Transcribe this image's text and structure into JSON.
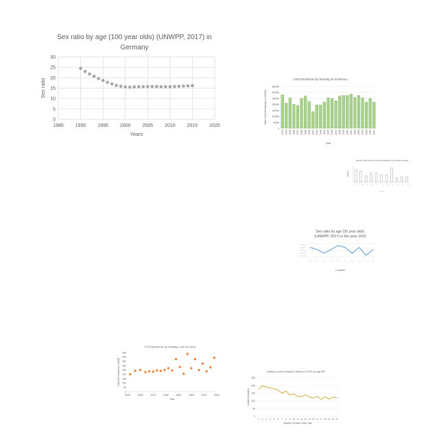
{
  "chart_data": [
    {
      "type": "scatter",
      "title_lines": [
        "Sex ratio by age (100 year olds) (UNWPP, 2017) in",
        "Germany"
      ],
      "xlabel": "Years",
      "ylabel": "Sex ratio",
      "xlim": [
        1985,
        2020
      ],
      "ylim": [
        0,
        30
      ],
      "xticks": [
        1985,
        1990,
        1995,
        2000,
        2005,
        2010,
        2015,
        2020
      ],
      "yticks": [
        0,
        5,
        10,
        15,
        20,
        25,
        30
      ],
      "grid": true,
      "marker_color": "#a5a5a5",
      "x": [
        1990,
        1991,
        1992,
        1993,
        1994,
        1995,
        1996,
        1997,
        1998,
        1999,
        2000,
        2001,
        2002,
        2003,
        2004,
        2005,
        2006,
        2007,
        2008,
        2009,
        2010,
        2011,
        2012,
        2013,
        2014,
        2015
      ],
      "y": [
        24.5,
        23.0,
        21.8,
        20.7,
        19.6,
        18.7,
        17.8,
        17.0,
        16.3,
        15.9,
        15.6,
        15.5,
        15.6,
        15.7,
        15.7,
        15.8,
        15.8,
        15.8,
        15.7,
        15.7,
        15.7,
        15.8,
        15.9,
        16.0,
        16.1,
        16.2
      ]
    },
    {
      "type": "bar",
      "title": "CO2 Emissions by burning oil in Mexico",
      "xlabel": "Year",
      "ylabel": "Total CO2 Emissions (*10000)",
      "ylim": [
        0,
        35000
      ],
      "yticks": [
        "0",
        "5000",
        "10000",
        "15000",
        "20000",
        "25000",
        "30000",
        "35000"
      ],
      "bar_color": "#a9d18e",
      "bar_edge": "#70ad47",
      "categories": [
        "1933",
        "1934",
        "1935",
        "1936",
        "1937",
        "1938",
        "1939",
        "1940",
        "1941",
        "1942",
        "1943",
        "1944",
        "1945",
        "1946",
        "1947",
        "1948",
        "1949",
        "1950",
        "1951",
        "1952",
        "1953",
        "1954",
        "1955",
        "1956",
        "1957"
      ],
      "values": [
        28000,
        21000,
        25500,
        20000,
        19000,
        25000,
        27000,
        22500,
        14000,
        19500,
        19500,
        22000,
        25500,
        25000,
        23000,
        27000,
        27500,
        27500,
        28500,
        26000,
        27500,
        25500,
        22000,
        25000,
        22000
      ]
    },
    {
      "type": "bar",
      "title": "Number (MT CO2) of crude oil production in several countries",
      "ylabel": "Number",
      "bar_color": "#ffffff",
      "bar_edge": "#8c8c8c",
      "values": [
        60,
        55,
        30,
        45,
        45,
        35,
        35,
        70,
        20,
        25,
        25
      ]
    },
    {
      "type": "line",
      "title_lines": [
        "Sex ratio by age (30 year olds)",
        "(UNWPP, 2017) in the year 2010"
      ],
      "xlabel": "Location",
      "line_color": "#5b9bd5",
      "values": [
        101,
        100.5,
        99.5,
        100.5,
        101.5,
        101,
        99.5,
        101,
        99,
        100.5
      ]
    },
    {
      "type": "scatter",
      "title": "CO2 Emissions by burning coal in Latvia",
      "xlabel": "Year",
      "ylabel": "Total CO2 Emissions in 1000t",
      "xlim": [
        1950,
        2020
      ],
      "ylim": [
        0,
        450
      ],
      "xticks": [
        1950,
        1960,
        1970,
        1980,
        1990,
        2000,
        2010,
        2020
      ],
      "yticks": [
        0,
        50,
        100,
        150,
        200,
        250,
        300,
        350,
        400,
        450
      ],
      "marker_color": "#ed7d31",
      "x": [
        1952,
        1956,
        1960,
        1964,
        1967,
        1970,
        1973,
        1976,
        1979,
        1982,
        1985,
        1988,
        1991,
        1994,
        1997,
        2000,
        2003,
        2006,
        2009,
        2012,
        2015,
        2018
      ],
      "y": [
        200,
        240,
        250,
        225,
        235,
        230,
        245,
        240,
        250,
        270,
        245,
        375,
        285,
        205,
        435,
        270,
        375,
        250,
        325,
        235,
        280,
        390
      ]
    },
    {
      "type": "line",
      "title": "Weekly count of deaths in Mexico in 2020 for age 85+",
      "xlabel": "Number of Week of the Year",
      "ylabel": "number of deaths",
      "ylim": [
        0,
        250
      ],
      "yticks": [
        0,
        50,
        100,
        150,
        200,
        250
      ],
      "line_color": "#c9a227",
      "categories": [
        "1",
        "2",
        "3",
        "4",
        "5",
        "6",
        "7",
        "8",
        "9",
        "10",
        "11",
        "12",
        "13",
        "14",
        "15",
        "16",
        "17",
        "18",
        "19",
        "20",
        "21"
      ],
      "values": [
        175,
        200,
        190,
        185,
        180,
        170,
        150,
        165,
        140,
        145,
        130,
        128,
        140,
        125,
        120,
        130,
        110,
        128,
        112,
        125,
        118
      ]
    }
  ]
}
